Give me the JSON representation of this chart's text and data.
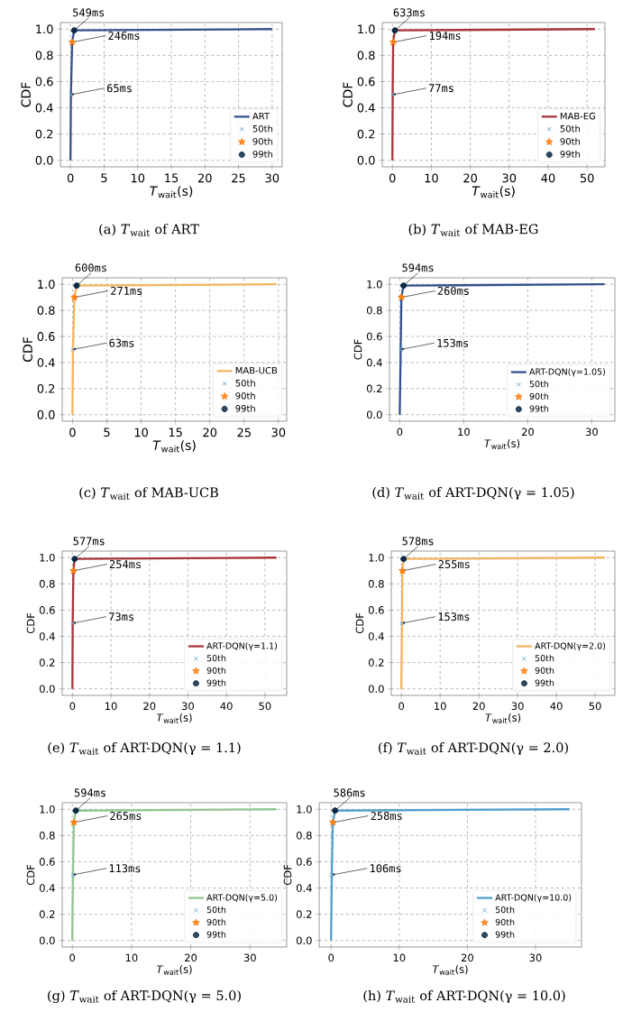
{
  "chart_data": [
    {
      "type": "line",
      "title": "(a) *T*$_{wait}$ of ART",
      "xlabel": "*T*$_{wait}$(s)",
      "ylabel": "CDF",
      "xlim": [
        -1.5,
        31.5
      ],
      "xticks": [
        0,
        5,
        10,
        15,
        20,
        25,
        30
      ],
      "ylim": [
        -0.05,
        1.05
      ],
      "yticks": [
        {
          "value": 0,
          "label": "0.0"
        },
        {
          "value": 0.2,
          "label": "0.2"
        },
        {
          "value": 0.4,
          "label": "0.4"
        },
        {
          "value": 0.6,
          "label": "0.6"
        },
        {
          "value": 0.8,
          "label": "0.8"
        },
        {
          "value": 1,
          "label": "1.0"
        }
      ],
      "grid": true,
      "legend": "bottom right",
      "series": [
        {
          "name": "ART",
          "color": "#34528f",
          "x": [
            0,
            0.065,
            0.246,
            0.549,
            30
          ],
          "values": [
            0,
            0.5,
            0.9,
            0.99,
            1
          ]
        },
        {
          "name": "50th",
          "type": "scatter",
          "marker": "cross",
          "color": "#6baed6",
          "x": [
            0.065
          ],
          "values": [
            0.5
          ]
        },
        {
          "name": "90th",
          "type": "scatter",
          "marker": "star",
          "color": "#ff7f0e",
          "x": [
            0.246
          ],
          "values": [
            0.9
          ]
        },
        {
          "name": "99th",
          "type": "scatter",
          "marker": "circle",
          "color": "#0b2a45",
          "x": [
            0.549
          ],
          "values": [
            0.99
          ]
        }
      ],
      "annotations": [
        {
          "text": "549ms",
          "x": 0.549,
          "y": 0.99
        },
        {
          "text": "246ms",
          "x": 0.246,
          "y": 0.9
        },
        {
          "text": "65ms",
          "x": 0.065,
          "y": 0.5
        }
      ]
    },
    {
      "type": "line",
      "title": "(b) *T*$_{wait}$ of MAB-EG",
      "xlabel": "*T*$_{wait}$(s)",
      "ylabel": "CDF",
      "xlim": [
        -2.6,
        54.6
      ],
      "xticks": [
        0,
        10,
        20,
        30,
        40,
        50
      ],
      "ylim": [
        -0.05,
        1.05
      ],
      "yticks": [
        {
          "value": 0,
          "label": "0.0"
        },
        {
          "value": 0.2,
          "label": "0.2"
        },
        {
          "value": 0.4,
          "label": "0.4"
        },
        {
          "value": 0.6,
          "label": "0.6"
        },
        {
          "value": 0.8,
          "label": "0.8"
        },
        {
          "value": 1,
          "label": "1.0"
        }
      ],
      "grid": true,
      "legend": "bottom right",
      "series": [
        {
          "name": "MAB-EG",
          "color": "#a8343b",
          "x": [
            0,
            0.077,
            0.194,
            0.633,
            52
          ],
          "values": [
            0,
            0.5,
            0.9,
            0.99,
            1
          ]
        },
        {
          "name": "50th",
          "type": "scatter",
          "marker": "cross",
          "color": "#6baed6",
          "x": [
            0.077
          ],
          "values": [
            0.5
          ]
        },
        {
          "name": "90th",
          "type": "scatter",
          "marker": "star",
          "color": "#ff7f0e",
          "x": [
            0.194
          ],
          "values": [
            0.9
          ]
        },
        {
          "name": "99th",
          "type": "scatter",
          "marker": "circle",
          "color": "#0b2a45",
          "x": [
            0.633
          ],
          "values": [
            0.99
          ]
        }
      ],
      "annotations": [
        {
          "text": "633ms",
          "x": 0.633,
          "y": 0.99
        },
        {
          "text": "194ms",
          "x": 0.194,
          "y": 0.9
        },
        {
          "text": "77ms",
          "x": 0.077,
          "y": 0.5
        }
      ]
    },
    {
      "type": "line",
      "title": "(c) *T*$_{wait}$ of MAB-UCB",
      "xlabel": "*T*$_{wait}$(s)",
      "ylabel": "CDF",
      "xlim": [
        -1.5,
        31.2
      ],
      "xticks": [
        0,
        5,
        10,
        15,
        20,
        25,
        30
      ],
      "ylim": [
        -0.05,
        1.05
      ],
      "yticks": [
        {
          "value": 0,
          "label": "0.0"
        },
        {
          "value": 0.2,
          "label": "0.2"
        },
        {
          "value": 0.4,
          "label": "0.4"
        },
        {
          "value": 0.6,
          "label": "0.6"
        },
        {
          "value": 0.8,
          "label": "0.8"
        },
        {
          "value": 1,
          "label": "1.0"
        }
      ],
      "grid": true,
      "legend": "bottom right",
      "series": [
        {
          "name": "MAB-UCB",
          "color": "#f5b461",
          "x": [
            0,
            0.063,
            0.271,
            0.6,
            29.7
          ],
          "values": [
            0,
            0.5,
            0.9,
            0.99,
            1
          ]
        },
        {
          "name": "50th",
          "type": "scatter",
          "marker": "cross",
          "color": "#6baed6",
          "x": [
            0.063
          ],
          "values": [
            0.5
          ]
        },
        {
          "name": "90th",
          "type": "scatter",
          "marker": "star",
          "color": "#ff7f0e",
          "x": [
            0.271
          ],
          "values": [
            0.9
          ]
        },
        {
          "name": "99th",
          "type": "scatter",
          "marker": "circle",
          "color": "#0b2a45",
          "x": [
            0.6
          ],
          "values": [
            0.99
          ]
        }
      ],
      "annotations": [
        {
          "text": "600ms",
          "x": 0.6,
          "y": 0.99
        },
        {
          "text": "271ms",
          "x": 0.271,
          "y": 0.9
        },
        {
          "text": "63ms",
          "x": 0.063,
          "y": 0.5
        }
      ]
    },
    {
      "type": "line",
      "title": "(d) *T*$_{wait}$ of ART-DQN(γ = 1.05)",
      "xlabel": "*T*$_{wait}$(s)",
      "ylabel": "CDF",
      "xlim": [
        -1.6,
        33.6
      ],
      "xticks": [
        0,
        10,
        20,
        30
      ],
      "ylim": [
        -0.05,
        1.05
      ],
      "yticks": [
        {
          "value": 0,
          "label": "0.0"
        },
        {
          "value": 0.2,
          "label": "0.2"
        },
        {
          "value": 0.4,
          "label": "0.4"
        },
        {
          "value": 0.6,
          "label": "0.6"
        },
        {
          "value": 0.8,
          "label": "0.8"
        },
        {
          "value": 1,
          "label": "1.0"
        }
      ],
      "grid": true,
      "legend": "bottom right",
      "series": [
        {
          "name": "ART-DQN(γ=1.05)",
          "color": "#34528f",
          "x": [
            0,
            0.153,
            0.26,
            0.594,
            32
          ],
          "values": [
            0,
            0.5,
            0.9,
            0.99,
            1
          ]
        },
        {
          "name": "50th",
          "type": "scatter",
          "marker": "cross",
          "color": "#6baed6",
          "x": [
            0.153
          ],
          "values": [
            0.5
          ]
        },
        {
          "name": "90th",
          "type": "scatter",
          "marker": "star",
          "color": "#ff7f0e",
          "x": [
            0.26
          ],
          "values": [
            0.9
          ]
        },
        {
          "name": "99th",
          "type": "scatter",
          "marker": "circle",
          "color": "#0b2a45",
          "x": [
            0.594
          ],
          "values": [
            0.99
          ]
        }
      ],
      "annotations": [
        {
          "text": "594ms",
          "x": 0.594,
          "y": 0.99
        },
        {
          "text": "260ms",
          "x": 0.26,
          "y": 0.9
        },
        {
          "text": "153ms",
          "x": 0.153,
          "y": 0.5
        }
      ]
    },
    {
      "type": "line",
      "title": "(e) *T*$_{wait}$ of ART-DQN(γ = 1.1)",
      "xlabel": "*T*$_{wait}$(s)",
      "ylabel": "CDF",
      "xlim": [
        -2.65,
        55.65
      ],
      "xticks": [
        0,
        10,
        20,
        30,
        40,
        50
      ],
      "ylim": [
        -0.05,
        1.05
      ],
      "yticks": [
        {
          "value": 0,
          "label": "0.0"
        },
        {
          "value": 0.2,
          "label": "0.2"
        },
        {
          "value": 0.4,
          "label": "0.4"
        },
        {
          "value": 0.6,
          "label": "0.6"
        },
        {
          "value": 0.8,
          "label": "0.8"
        },
        {
          "value": 1,
          "label": "1.0"
        }
      ],
      "grid": true,
      "legend": "bottom right",
      "series": [
        {
          "name": "ART-DQN(γ=1.1)",
          "color": "#a8343b",
          "x": [
            0,
            0.073,
            0.254,
            0.577,
            53
          ],
          "values": [
            0,
            0.5,
            0.9,
            0.99,
            1
          ]
        },
        {
          "name": "50th",
          "type": "scatter",
          "marker": "cross",
          "color": "#6baed6",
          "x": [
            0.073
          ],
          "values": [
            0.5
          ]
        },
        {
          "name": "90th",
          "type": "scatter",
          "marker": "star",
          "color": "#ff7f0e",
          "x": [
            0.254
          ],
          "values": [
            0.9
          ]
        },
        {
          "name": "99th",
          "type": "scatter",
          "marker": "circle",
          "color": "#0b2a45",
          "x": [
            0.577
          ],
          "values": [
            0.99
          ]
        }
      ],
      "annotations": [
        {
          "text": "577ms",
          "x": 0.577,
          "y": 0.99
        },
        {
          "text": "254ms",
          "x": 0.254,
          "y": 0.9
        },
        {
          "text": "73ms",
          "x": 0.073,
          "y": 0.5
        }
      ]
    },
    {
      "type": "line",
      "title": "(f) *T*$_{wait}$ of ART-DQN(γ = 2.0)",
      "xlabel": "*T*$_{wait}$(s)",
      "ylabel": "CDF",
      "xlim": [
        -2.6,
        55.1
      ],
      "xticks": [
        0,
        10,
        20,
        30,
        40,
        50
      ],
      "ylim": [
        -0.05,
        1.05
      ],
      "yticks": [
        {
          "value": 0,
          "label": "0.0"
        },
        {
          "value": 0.2,
          "label": "0.2"
        },
        {
          "value": 0.4,
          "label": "0.4"
        },
        {
          "value": 0.6,
          "label": "0.6"
        },
        {
          "value": 0.8,
          "label": "0.8"
        },
        {
          "value": 1,
          "label": "1.0"
        }
      ],
      "grid": true,
      "legend": "bottom right",
      "series": [
        {
          "name": "ART-DQN(γ=2.0)",
          "color": "#f5b461",
          "x": [
            0,
            0.153,
            0.255,
            0.578,
            52.5
          ],
          "values": [
            0,
            0.5,
            0.9,
            0.99,
            1
          ]
        },
        {
          "name": "50th",
          "type": "scatter",
          "marker": "cross",
          "color": "#6baed6",
          "x": [
            0.153
          ],
          "values": [
            0.5
          ]
        },
        {
          "name": "90th",
          "type": "scatter",
          "marker": "star",
          "color": "#ff7f0e",
          "x": [
            0.255
          ],
          "values": [
            0.9
          ]
        },
        {
          "name": "99th",
          "type": "scatter",
          "marker": "circle",
          "color": "#0b2a45",
          "x": [
            0.578
          ],
          "values": [
            0.99
          ]
        }
      ],
      "annotations": [
        {
          "text": "578ms",
          "x": 0.578,
          "y": 0.99
        },
        {
          "text": "255ms",
          "x": 0.255,
          "y": 0.9
        },
        {
          "text": "153ms",
          "x": 0.153,
          "y": 0.5
        }
      ]
    },
    {
      "type": "line",
      "title": "(g) *T*$_{wait}$ of ART-DQN(γ = 5.0)",
      "xlabel": "*T*$_{wait}$(s)",
      "ylabel": "CDF",
      "xlim": [
        -1.7,
        36.2
      ],
      "xticks": [
        0,
        10,
        20,
        30
      ],
      "ylim": [
        -0.05,
        1.05
      ],
      "yticks": [
        {
          "value": 0,
          "label": "0.0"
        },
        {
          "value": 0.2,
          "label": "0.2"
        },
        {
          "value": 0.4,
          "label": "0.4"
        },
        {
          "value": 0.6,
          "label": "0.6"
        },
        {
          "value": 0.8,
          "label": "0.8"
        },
        {
          "value": 1,
          "label": "1.0"
        }
      ],
      "grid": true,
      "legend": "bottom right",
      "series": [
        {
          "name": "ART-DQN(γ=5.0)",
          "color": "#92c592",
          "x": [
            0,
            0.113,
            0.265,
            0.594,
            34.5
          ],
          "values": [
            0,
            0.5,
            0.9,
            0.99,
            1
          ]
        },
        {
          "name": "50th",
          "type": "scatter",
          "marker": "cross",
          "color": "#6baed6",
          "x": [
            0.113
          ],
          "values": [
            0.5
          ]
        },
        {
          "name": "90th",
          "type": "scatter",
          "marker": "star",
          "color": "#ff7f0e",
          "x": [
            0.265
          ],
          "values": [
            0.9
          ]
        },
        {
          "name": "99th",
          "type": "scatter",
          "marker": "circle",
          "color": "#0b2a45",
          "x": [
            0.594
          ],
          "values": [
            0.99
          ]
        }
      ],
      "annotations": [
        {
          "text": "594ms",
          "x": 0.594,
          "y": 0.99
        },
        {
          "text": "265ms",
          "x": 0.265,
          "y": 0.9
        },
        {
          "text": "113ms",
          "x": 0.113,
          "y": 0.5
        }
      ]
    },
    {
      "type": "line",
      "title": "(h) *T*$_{wait}$ of ART-DQN(γ = 10.0)",
      "xlabel": "*T*$_{wait}$(s)",
      "ylabel": "CDF",
      "xlim": [
        -1.75,
        36.75
      ],
      "xticks": [
        0,
        10,
        20,
        30
      ],
      "ylim": [
        -0.05,
        1.05
      ],
      "yticks": [
        {
          "value": 0,
          "label": "0.0"
        },
        {
          "value": 0.2,
          "label": "0.2"
        },
        {
          "value": 0.4,
          "label": "0.4"
        },
        {
          "value": 0.6,
          "label": "0.6"
        },
        {
          "value": 0.8,
          "label": "0.8"
        },
        {
          "value": 1,
          "label": "1.0"
        }
      ],
      "grid": true,
      "legend": "bottom right",
      "series": [
        {
          "name": "ART-DQN(γ=10.0)",
          "color": "#519fcf",
          "x": [
            0,
            0.106,
            0.258,
            0.586,
            35
          ],
          "values": [
            0,
            0.5,
            0.9,
            0.99,
            1
          ]
        },
        {
          "name": "50th",
          "type": "scatter",
          "marker": "cross",
          "color": "#6baed6",
          "x": [
            0.106
          ],
          "values": [
            0.5
          ]
        },
        {
          "name": "90th",
          "type": "scatter",
          "marker": "star",
          "color": "#ff7f0e",
          "x": [
            0.258
          ],
          "values": [
            0.9
          ]
        },
        {
          "name": "99th",
          "type": "scatter",
          "marker": "circle",
          "color": "#0b2a45",
          "x": [
            0.586
          ],
          "values": [
            0.99
          ]
        }
      ],
      "annotations": [
        {
          "text": "586ms",
          "x": 0.586,
          "y": 0.99
        },
        {
          "text": "258ms",
          "x": 0.258,
          "y": 0.9
        },
        {
          "text": "106ms",
          "x": 0.106,
          "y": 0.5
        }
      ]
    }
  ]
}
